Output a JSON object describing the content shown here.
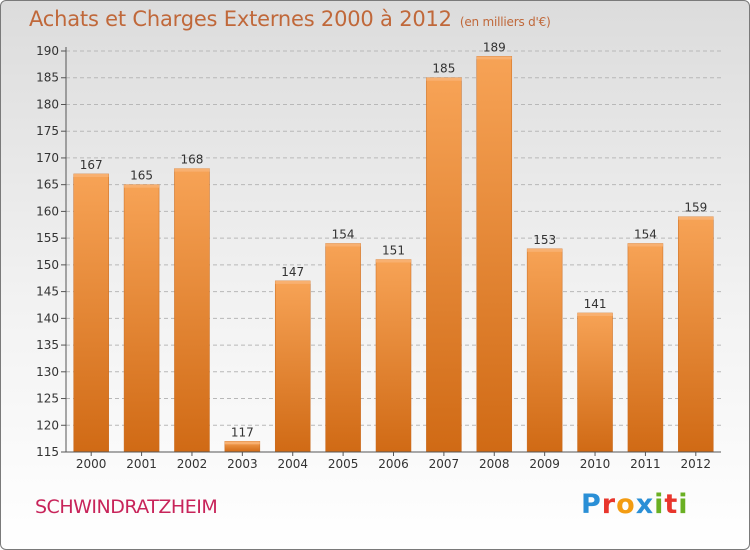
{
  "title": "Achats et Charges Externes 2000 à 2012",
  "unit_note": "(en milliers d'€)",
  "city": "SCHWINDRATZHEIM",
  "logo": {
    "letters": [
      "P",
      "r",
      "o",
      "x",
      "i",
      "t",
      "i"
    ],
    "colors": [
      "#2a8fd6",
      "#e8352c",
      "#f39c12",
      "#2a8fd6",
      "#6ab023",
      "#e8352c",
      "#6ab023"
    ]
  },
  "colors": {
    "bar": "#f28a30",
    "title": "#c0683a",
    "city": "#c8245a"
  },
  "chart_data": {
    "type": "bar",
    "title": "Achats et Charges Externes 2000 à 2012",
    "categories": [
      "2000",
      "2001",
      "2002",
      "2003",
      "2004",
      "2005",
      "2006",
      "2007",
      "2008",
      "2009",
      "2010",
      "2011",
      "2012"
    ],
    "values": [
      167,
      165,
      168,
      117,
      147,
      154,
      151,
      185,
      189,
      153,
      141,
      154,
      159
    ],
    "ylim": [
      115,
      190
    ],
    "yticks": [
      115,
      120,
      125,
      130,
      135,
      140,
      145,
      150,
      155,
      160,
      165,
      170,
      175,
      180,
      185,
      190
    ],
    "grid": true,
    "xlabel": "",
    "ylabel": ""
  }
}
